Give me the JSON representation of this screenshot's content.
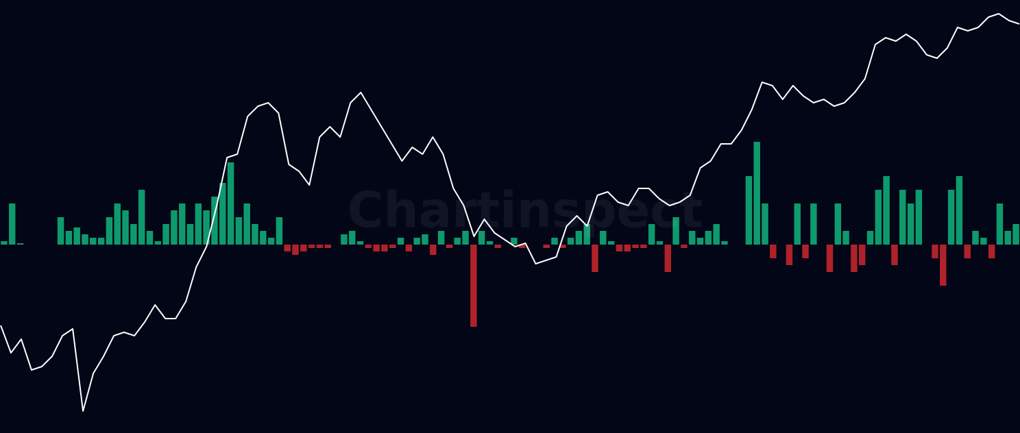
{
  "chart_data": {
    "type": "combo",
    "watermark": "Chartinspect",
    "ylim": [
      -275,
      357
    ],
    "y2lim": [
      0,
      632
    ],
    "series": [
      {
        "type": "bar",
        "color": "#0f9a6e",
        "negative_color": "#b0222a",
        "values": [
          5,
          60,
          2,
          0,
          0,
          0,
          0,
          40,
          20,
          25,
          15,
          10,
          10,
          40,
          60,
          50,
          30,
          80,
          20,
          5,
          30,
          50,
          60,
          30,
          60,
          50,
          70,
          90,
          120,
          40,
          60,
          30,
          20,
          10,
          40,
          -10,
          -15,
          -10,
          -5,
          -5,
          -5,
          0,
          15,
          20,
          5,
          -5,
          -10,
          -10,
          -5,
          10,
          -10,
          10,
          15,
          -15,
          20,
          -5,
          10,
          20,
          -120,
          20,
          5,
          -5,
          0,
          10,
          -5,
          0,
          0,
          -5,
          10,
          -5,
          10,
          20,
          30,
          -40,
          20,
          5,
          -10,
          -10,
          -5,
          -5,
          30,
          5,
          -40,
          40,
          -5,
          20,
          10,
          20,
          30,
          5,
          0,
          0,
          100,
          150,
          60,
          -20,
          0,
          -30,
          60,
          -20,
          60,
          0,
          -40,
          60,
          20,
          -40,
          -30,
          20,
          80,
          100,
          -30,
          80,
          60,
          80,
          0,
          -20,
          -60,
          80,
          100,
          -20,
          20,
          10,
          -20,
          60,
          20,
          30
        ]
      },
      {
        "type": "line",
        "color": "#ffffff",
        "axis": "y2",
        "values": [
          157,
          117,
          137,
          92,
          97,
          112,
          142,
          152,
          32,
          87,
          112,
          142,
          147,
          142,
          162,
          187,
          167,
          167,
          192,
          242,
          272,
          332,
          402,
          407,
          462,
          477,
          482,
          467,
          392,
          382,
          362,
          432,
          447,
          432,
          482,
          497,
          472,
          447,
          422,
          397,
          417,
          407,
          432,
          407,
          357,
          332,
          287,
          312,
          292,
          282,
          272,
          277,
          247,
          252,
          257,
          302,
          317,
          302,
          347,
          352,
          337,
          332,
          357,
          357,
          342,
          332,
          337,
          347,
          387,
          397,
          422,
          422,
          442,
          472,
          512,
          507,
          487,
          507,
          492,
          482,
          487,
          477,
          482,
          497,
          517,
          567,
          577,
          572,
          582,
          572,
          552,
          547,
          562,
          592,
          587,
          592,
          607,
          612,
          602,
          597
        ]
      }
    ]
  }
}
